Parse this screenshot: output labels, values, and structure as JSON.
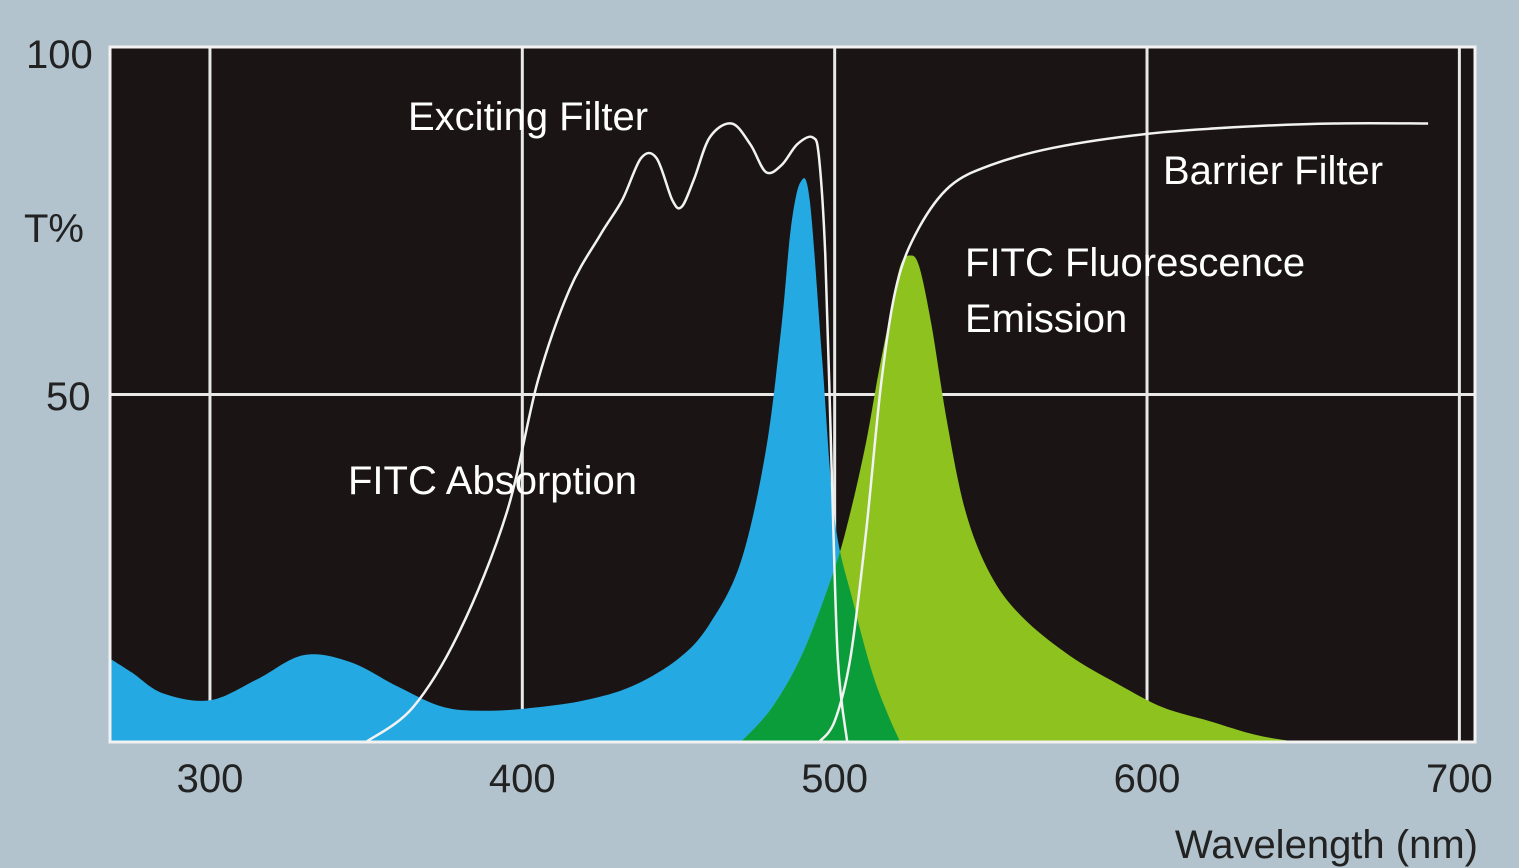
{
  "chart_data": {
    "type": "area",
    "title": "",
    "xlabel": "Wavelength (nm)",
    "ylabel": "T%",
    "xlim": [
      268,
      705
    ],
    "ylim": [
      0,
      100
    ],
    "x_ticks": [
      300,
      400,
      500,
      600,
      700
    ],
    "y_ticks": [
      50,
      100
    ],
    "grid": true,
    "background": "#1a1514",
    "colors": {
      "absorption": "#25a9e3",
      "emission": "#8ec21f",
      "overlap": "#0b9d3a",
      "filter_line": "#f2f2f2"
    },
    "series": [
      {
        "name": "FITC Absorption",
        "kind": "filled",
        "points": [
          [
            268,
            12
          ],
          [
            275,
            10
          ],
          [
            285,
            7
          ],
          [
            300,
            6
          ],
          [
            315,
            9
          ],
          [
            330,
            12.5
          ],
          [
            345,
            11.5
          ],
          [
            360,
            8
          ],
          [
            375,
            5
          ],
          [
            390,
            4.5
          ],
          [
            405,
            5
          ],
          [
            420,
            6
          ],
          [
            435,
            8
          ],
          [
            450,
            12
          ],
          [
            460,
            17
          ],
          [
            470,
            26
          ],
          [
            478,
            42
          ],
          [
            483,
            60
          ],
          [
            486,
            74
          ],
          [
            489,
            80.5
          ],
          [
            492,
            78
          ],
          [
            496,
            55
          ],
          [
            500,
            32
          ],
          [
            506,
            20
          ],
          [
            512,
            10
          ],
          [
            517,
            4
          ],
          [
            521,
            0
          ]
        ]
      },
      {
        "name": "FITC Fluorescence Emission",
        "kind": "filled",
        "points": [
          [
            470,
            0
          ],
          [
            480,
            5
          ],
          [
            490,
            13
          ],
          [
            500,
            25
          ],
          [
            505,
            33
          ],
          [
            510,
            43
          ],
          [
            514,
            53
          ],
          [
            518,
            62
          ],
          [
            521,
            68.5
          ],
          [
            524,
            70
          ],
          [
            527,
            68.5
          ],
          [
            531,
            60
          ],
          [
            536,
            46
          ],
          [
            542,
            33
          ],
          [
            550,
            24
          ],
          [
            560,
            18
          ],
          [
            575,
            12.5
          ],
          [
            590,
            8.5
          ],
          [
            605,
            5
          ],
          [
            620,
            3
          ],
          [
            635,
            1
          ],
          [
            648,
            0
          ]
        ]
      },
      {
        "name": "Exciting Filter",
        "kind": "line",
        "points": [
          [
            350,
            0
          ],
          [
            365,
            5
          ],
          [
            380,
            16
          ],
          [
            395,
            33
          ],
          [
            405,
            52
          ],
          [
            415,
            65
          ],
          [
            425,
            73
          ],
          [
            432,
            78
          ],
          [
            438,
            84
          ],
          [
            443,
            84
          ],
          [
            448,
            78
          ],
          [
            451,
            77
          ],
          [
            455,
            81
          ],
          [
            460,
            87
          ],
          [
            467,
            89
          ],
          [
            473,
            86
          ],
          [
            478,
            82
          ],
          [
            483,
            83
          ],
          [
            488,
            86
          ],
          [
            493,
            87
          ],
          [
            495,
            84
          ],
          [
            497,
            70
          ],
          [
            499,
            40
          ],
          [
            501,
            12
          ],
          [
            504,
            0
          ]
        ]
      },
      {
        "name": "Barrier Filter",
        "kind": "line",
        "points": [
          [
            495,
            0
          ],
          [
            500,
            3
          ],
          [
            505,
            12
          ],
          [
            510,
            30
          ],
          [
            515,
            52
          ],
          [
            520,
            66
          ],
          [
            527,
            74
          ],
          [
            537,
            80
          ],
          [
            550,
            83
          ],
          [
            570,
            85.5
          ],
          [
            600,
            87.5
          ],
          [
            630,
            88.5
          ],
          [
            660,
            89
          ],
          [
            690,
            89
          ]
        ]
      }
    ]
  }
}
